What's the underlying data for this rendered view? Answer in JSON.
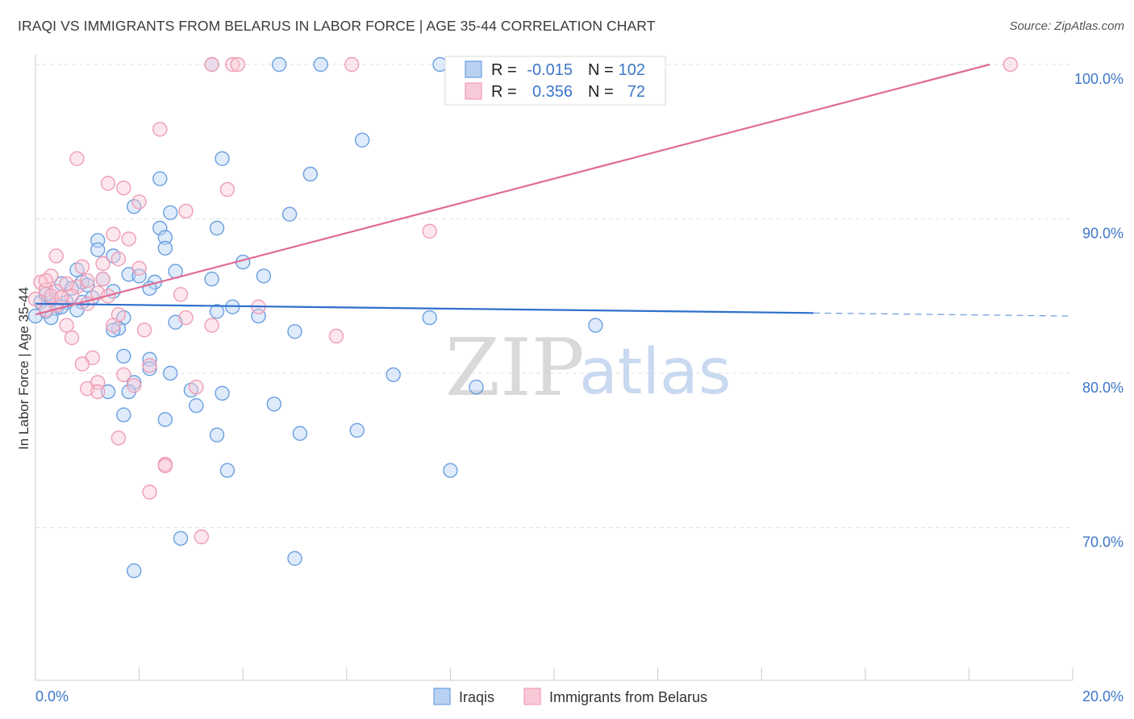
{
  "title": "IRAQI VS IMMIGRANTS FROM BELARUS IN LABOR FORCE | AGE 35-44 CORRELATION CHART",
  "source": "Source: ZipAtlas.com",
  "watermark": {
    "zip": "ZIP",
    "atlas": "atlas"
  },
  "chart_data": {
    "type": "scatter",
    "xlabel": "",
    "ylabel": "In Labor Force | Age 35-44",
    "xlim": [
      0,
      20
    ],
    "ylim": [
      60,
      100
    ],
    "x_ticks": [
      "0.0%",
      "20.0%"
    ],
    "y_ticks": [
      {
        "value": 100,
        "label": "100.0%"
      },
      {
        "value": 90,
        "label": "90.0%"
      },
      {
        "value": 80,
        "label": "80.0%"
      },
      {
        "value": 70,
        "label": "70.0%"
      }
    ],
    "grid": true,
    "legend_position": "top-center",
    "legend_stats": [
      {
        "r_label": "R =",
        "r_value": "-0.015",
        "n_label": "N =",
        "n_value": "102"
      },
      {
        "r_label": "R =",
        "r_value": "0.356",
        "n_label": "N =",
        "n_value": "72"
      }
    ],
    "series": [
      {
        "name": "Iraqis",
        "color": "#6a9fe0",
        "fill": "#b9d2f3",
        "trend_color": "#2e6fcc",
        "trend": {
          "x0": 0,
          "y0": 84.5,
          "x1": 15,
          "y1": 83.9,
          "dashed_to_x": 20.0,
          "dashed_y": 83.7
        },
        "points": [
          [
            3.4,
            100
          ],
          [
            4.7,
            100
          ],
          [
            5.5,
            100
          ],
          [
            7.8,
            100
          ],
          [
            6.3,
            95.1
          ],
          [
            3.6,
            93.9
          ],
          [
            2.4,
            92.6
          ],
          [
            5.3,
            92.9
          ],
          [
            1.9,
            90.8
          ],
          [
            2.6,
            90.4
          ],
          [
            3.5,
            89.4
          ],
          [
            4.9,
            90.3
          ],
          [
            1.2,
            88.6
          ],
          [
            2.4,
            89.4
          ],
          [
            2.5,
            88.8
          ],
          [
            2.5,
            88.1
          ],
          [
            1.2,
            88.0
          ],
          [
            1.5,
            87.6
          ],
          [
            4.0,
            87.2
          ],
          [
            0.8,
            86.7
          ],
          [
            2.7,
            86.6
          ],
          [
            1.8,
            86.4
          ],
          [
            1.3,
            86.1
          ],
          [
            0.9,
            85.9
          ],
          [
            2.3,
            85.9
          ],
          [
            0.5,
            85.8
          ],
          [
            1.0,
            85.7
          ],
          [
            2.2,
            85.5
          ],
          [
            0.7,
            85.5
          ],
          [
            1.5,
            85.3
          ],
          [
            4.4,
            86.3
          ],
          [
            0.3,
            84.8
          ],
          [
            0.1,
            84.6
          ],
          [
            0.9,
            84.6
          ],
          [
            0.6,
            84.6
          ],
          [
            0.4,
            84.2
          ],
          [
            0.8,
            84.1
          ],
          [
            0.2,
            84.0
          ],
          [
            3.8,
            84.3
          ],
          [
            3.5,
            84.0
          ],
          [
            0.0,
            83.7
          ],
          [
            0.3,
            83.6
          ],
          [
            4.3,
            83.7
          ],
          [
            2.7,
            83.3
          ],
          [
            1.7,
            83.6
          ],
          [
            1.6,
            82.9
          ],
          [
            1.5,
            82.8
          ],
          [
            5.0,
            82.7
          ],
          [
            7.6,
            83.6
          ],
          [
            10.8,
            83.1
          ],
          [
            1.7,
            81.1
          ],
          [
            2.2,
            80.9
          ],
          [
            2.2,
            80.3
          ],
          [
            2.6,
            80.0
          ],
          [
            1.9,
            79.4
          ],
          [
            3.0,
            78.9
          ],
          [
            1.8,
            78.8
          ],
          [
            1.4,
            78.8
          ],
          [
            3.6,
            78.7
          ],
          [
            6.9,
            79.9
          ],
          [
            8.5,
            79.1
          ],
          [
            4.6,
            78.0
          ],
          [
            3.1,
            77.9
          ],
          [
            1.7,
            77.3
          ],
          [
            2.5,
            77.0
          ],
          [
            6.2,
            76.3
          ],
          [
            5.1,
            76.1
          ],
          [
            3.5,
            76.0
          ],
          [
            3.7,
            73.7
          ],
          [
            8.0,
            73.7
          ],
          [
            2.8,
            69.3
          ],
          [
            5.0,
            68.0
          ],
          [
            1.9,
            67.2
          ],
          [
            3.4,
            86.1
          ],
          [
            0.2,
            85.1
          ],
          [
            1.1,
            84.9
          ],
          [
            0.5,
            84.3
          ],
          [
            2.0,
            86.3
          ]
        ]
      },
      {
        "name": "Immigrants from Belarus",
        "color": "#ef9db5",
        "fill": "#f8c9d7",
        "trend_color": "#e06c95",
        "trend": {
          "x0": 0,
          "y0": 83.8,
          "x1": 18.4,
          "y1": 100.0
        },
        "points": [
          [
            3.4,
            100
          ],
          [
            3.8,
            100
          ],
          [
            3.9,
            100
          ],
          [
            6.1,
            100
          ],
          [
            18.8,
            100
          ],
          [
            2.4,
            95.8
          ],
          [
            0.8,
            93.9
          ],
          [
            1.4,
            92.3
          ],
          [
            1.7,
            92.0
          ],
          [
            3.7,
            91.9
          ],
          [
            2.0,
            91.1
          ],
          [
            2.9,
            90.5
          ],
          [
            7.6,
            89.2
          ],
          [
            1.5,
            89.0
          ],
          [
            1.8,
            88.7
          ],
          [
            0.4,
            87.6
          ],
          [
            1.6,
            87.4
          ],
          [
            1.3,
            87.1
          ],
          [
            0.9,
            86.9
          ],
          [
            2.0,
            86.8
          ],
          [
            0.3,
            86.3
          ],
          [
            1.3,
            86.1
          ],
          [
            0.1,
            85.9
          ],
          [
            0.8,
            85.6
          ],
          [
            0.2,
            85.4
          ],
          [
            0.4,
            85.3
          ],
          [
            1.2,
            85.2
          ],
          [
            0.7,
            85.0
          ],
          [
            2.8,
            85.1
          ],
          [
            0.0,
            84.8
          ],
          [
            1.0,
            84.5
          ],
          [
            0.4,
            84.4
          ],
          [
            1.6,
            83.8
          ],
          [
            2.9,
            83.6
          ],
          [
            4.3,
            84.3
          ],
          [
            0.6,
            83.1
          ],
          [
            1.5,
            83.1
          ],
          [
            3.4,
            83.1
          ],
          [
            2.1,
            82.8
          ],
          [
            0.7,
            82.3
          ],
          [
            5.8,
            82.4
          ],
          [
            1.1,
            81.0
          ],
          [
            0.9,
            80.6
          ],
          [
            2.2,
            80.5
          ],
          [
            1.7,
            79.9
          ],
          [
            1.2,
            79.4
          ],
          [
            1.9,
            79.2
          ],
          [
            3.1,
            79.1
          ],
          [
            1.0,
            79.0
          ],
          [
            1.2,
            78.8
          ],
          [
            1.6,
            75.8
          ],
          [
            2.5,
            74.1
          ],
          [
            2.5,
            74.0
          ],
          [
            2.2,
            72.3
          ],
          [
            3.2,
            69.4
          ],
          [
            0.2,
            86.0
          ],
          [
            0.6,
            85.8
          ],
          [
            1.0,
            86.0
          ],
          [
            0.3,
            85.0
          ],
          [
            0.5,
            84.9
          ],
          [
            0.2,
            84.1
          ],
          [
            1.4,
            85.0
          ]
        ]
      }
    ]
  }
}
